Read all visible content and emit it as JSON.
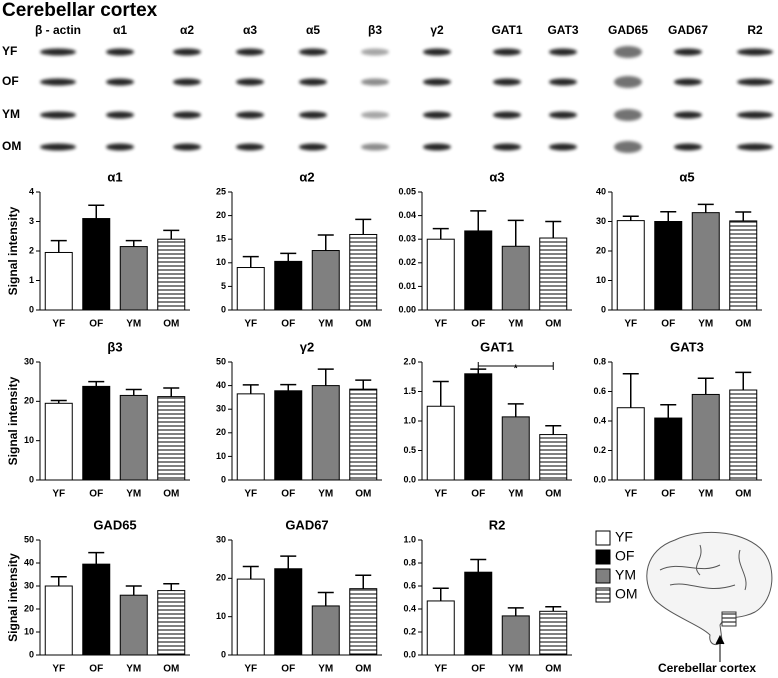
{
  "figure_title": "Cerebellar cortex",
  "blot_columns": [
    "β - actin",
    "α1",
    "α2",
    "α3",
    "α5",
    "β3",
    "γ2",
    "GAT1",
    "GAT3",
    "GAD65",
    "GAD67",
    "R2"
  ],
  "blot_rows": [
    "YF",
    "OF",
    "YM",
    "OM"
  ],
  "groups": [
    {
      "name": "YF",
      "fill": "#ffffff"
    },
    {
      "name": "OF",
      "fill": "#000000"
    },
    {
      "name": "YM",
      "fill": "#808080"
    },
    {
      "name": "OM",
      "fill": "hatch"
    }
  ],
  "brain_caption": "Cerebellar cortex",
  "chart_data": [
    {
      "type": "bar",
      "title": "α1",
      "y_label": "Signal intensity",
      "categories": [
        "YF",
        "OF",
        "YM",
        "OM"
      ],
      "values": [
        1.95,
        3.1,
        2.15,
        2.4
      ],
      "errors": [
        0.4,
        0.45,
        0.2,
        0.3
      ],
      "ylim": [
        0,
        4
      ],
      "yticks": [
        0,
        1,
        2,
        3,
        4
      ]
    },
    {
      "type": "bar",
      "title": "α2",
      "categories": [
        "YF",
        "OF",
        "YM",
        "OM"
      ],
      "values": [
        9,
        10.3,
        12.6,
        16
      ],
      "errors": [
        2.3,
        1.7,
        3.3,
        3.2
      ],
      "ylim": [
        0,
        25
      ],
      "yticks": [
        0,
        5,
        10,
        15,
        20,
        25
      ]
    },
    {
      "type": "bar",
      "title": "α3",
      "categories": [
        "YF",
        "OF",
        "YM",
        "OM"
      ],
      "values": [
        0.03,
        0.0335,
        0.027,
        0.0305
      ],
      "errors": [
        0.0045,
        0.0085,
        0.011,
        0.007
      ],
      "ylim": [
        0,
        0.05
      ],
      "yticks": [
        {
          "value": 0,
          "label": "0.00"
        },
        {
          "value": 0.01,
          "label": "0.01"
        },
        {
          "value": 0.02,
          "label": "0.02"
        },
        {
          "value": 0.03,
          "label": "0.03"
        },
        {
          "value": 0.04,
          "label": "0.04"
        },
        {
          "value": 0.05,
          "label": "0.05"
        }
      ]
    },
    {
      "type": "bar",
      "title": "α5",
      "categories": [
        "YF",
        "OF",
        "YM",
        "OM"
      ],
      "values": [
        30.3,
        30,
        33,
        30.2
      ],
      "errors": [
        1.5,
        3.3,
        2.8,
        3
      ],
      "ylim": [
        0,
        40
      ],
      "yticks": [
        0,
        10,
        20,
        30,
        40
      ]
    },
    {
      "type": "bar",
      "title": "β3",
      "y_label": "Signal intensity",
      "categories": [
        "YF",
        "OF",
        "YM",
        "OM"
      ],
      "values": [
        19.5,
        23.8,
        21.5,
        21.2
      ],
      "errors": [
        0.7,
        1.2,
        1.5,
        2.2
      ],
      "ylim": [
        0,
        30
      ],
      "yticks": [
        0,
        10,
        20,
        30
      ]
    },
    {
      "type": "bar",
      "title": "γ2",
      "categories": [
        "YF",
        "OF",
        "YM",
        "OM"
      ],
      "values": [
        36.5,
        37.8,
        40,
        38.5
      ],
      "errors": [
        3.8,
        2.6,
        7,
        3.8
      ],
      "ylim": [
        0,
        50
      ],
      "yticks": [
        0,
        10,
        20,
        30,
        40,
        50
      ]
    },
    {
      "type": "bar",
      "title": "GAT1",
      "annotation": "*",
      "categories": [
        "YF",
        "OF",
        "YM",
        "OM"
      ],
      "values": [
        1.25,
        1.8,
        1.07,
        0.77
      ],
      "errors": [
        0.42,
        0.08,
        0.22,
        0.15
      ],
      "ylim": [
        0,
        2
      ],
      "yticks": [
        {
          "value": 0,
          "label": "0.0"
        },
        {
          "value": 0.5,
          "label": "0.5"
        },
        {
          "value": 1,
          "label": "1.0"
        },
        {
          "value": 1.5,
          "label": "1.5"
        },
        {
          "value": 2,
          "label": "2.0"
        }
      ]
    },
    {
      "type": "bar",
      "title": "GAT3",
      "categories": [
        "YF",
        "OF",
        "YM",
        "OM"
      ],
      "values": [
        0.49,
        0.42,
        0.58,
        0.61
      ],
      "errors": [
        0.23,
        0.09,
        0.11,
        0.12
      ],
      "ylim": [
        0,
        0.8
      ],
      "yticks": [
        {
          "value": 0,
          "label": "0.0"
        },
        {
          "value": 0.2,
          "label": "0.2"
        },
        {
          "value": 0.4,
          "label": "0.4"
        },
        {
          "value": 0.6,
          "label": "0.6"
        },
        {
          "value": 0.8,
          "label": "0.8"
        }
      ]
    },
    {
      "type": "bar",
      "title": "GAD65",
      "y_label": "Signal intensity",
      "categories": [
        "YF",
        "OF",
        "YM",
        "OM"
      ],
      "values": [
        30,
        39.5,
        26,
        28
      ],
      "errors": [
        4,
        5,
        4,
        3
      ],
      "ylim": [
        0,
        50
      ],
      "yticks": [
        0,
        10,
        20,
        30,
        40,
        50
      ]
    },
    {
      "type": "bar",
      "title": "GAD67",
      "categories": [
        "YF",
        "OF",
        "YM",
        "OM"
      ],
      "values": [
        19.8,
        22.5,
        12.8,
        17.3
      ],
      "errors": [
        3.3,
        3.3,
        3.5,
        3.5
      ],
      "ylim": [
        0,
        30
      ],
      "yticks": [
        0,
        10,
        20,
        30
      ]
    },
    {
      "type": "bar",
      "title": "R2",
      "categories": [
        "YF",
        "OF",
        "YM",
        "OM"
      ],
      "values": [
        0.47,
        0.72,
        0.34,
        0.38
      ],
      "errors": [
        0.11,
        0.11,
        0.07,
        0.04
      ],
      "ylim": [
        0,
        1
      ],
      "yticks": [
        {
          "value": 0,
          "label": "0.0"
        },
        {
          "value": 0.2,
          "label": "0.2"
        },
        {
          "value": 0.4,
          "label": "0.4"
        },
        {
          "value": 0.6,
          "label": "0.6"
        },
        {
          "value": 0.8,
          "label": "0.8"
        },
        {
          "value": 1,
          "label": "1.0"
        }
      ]
    }
  ]
}
